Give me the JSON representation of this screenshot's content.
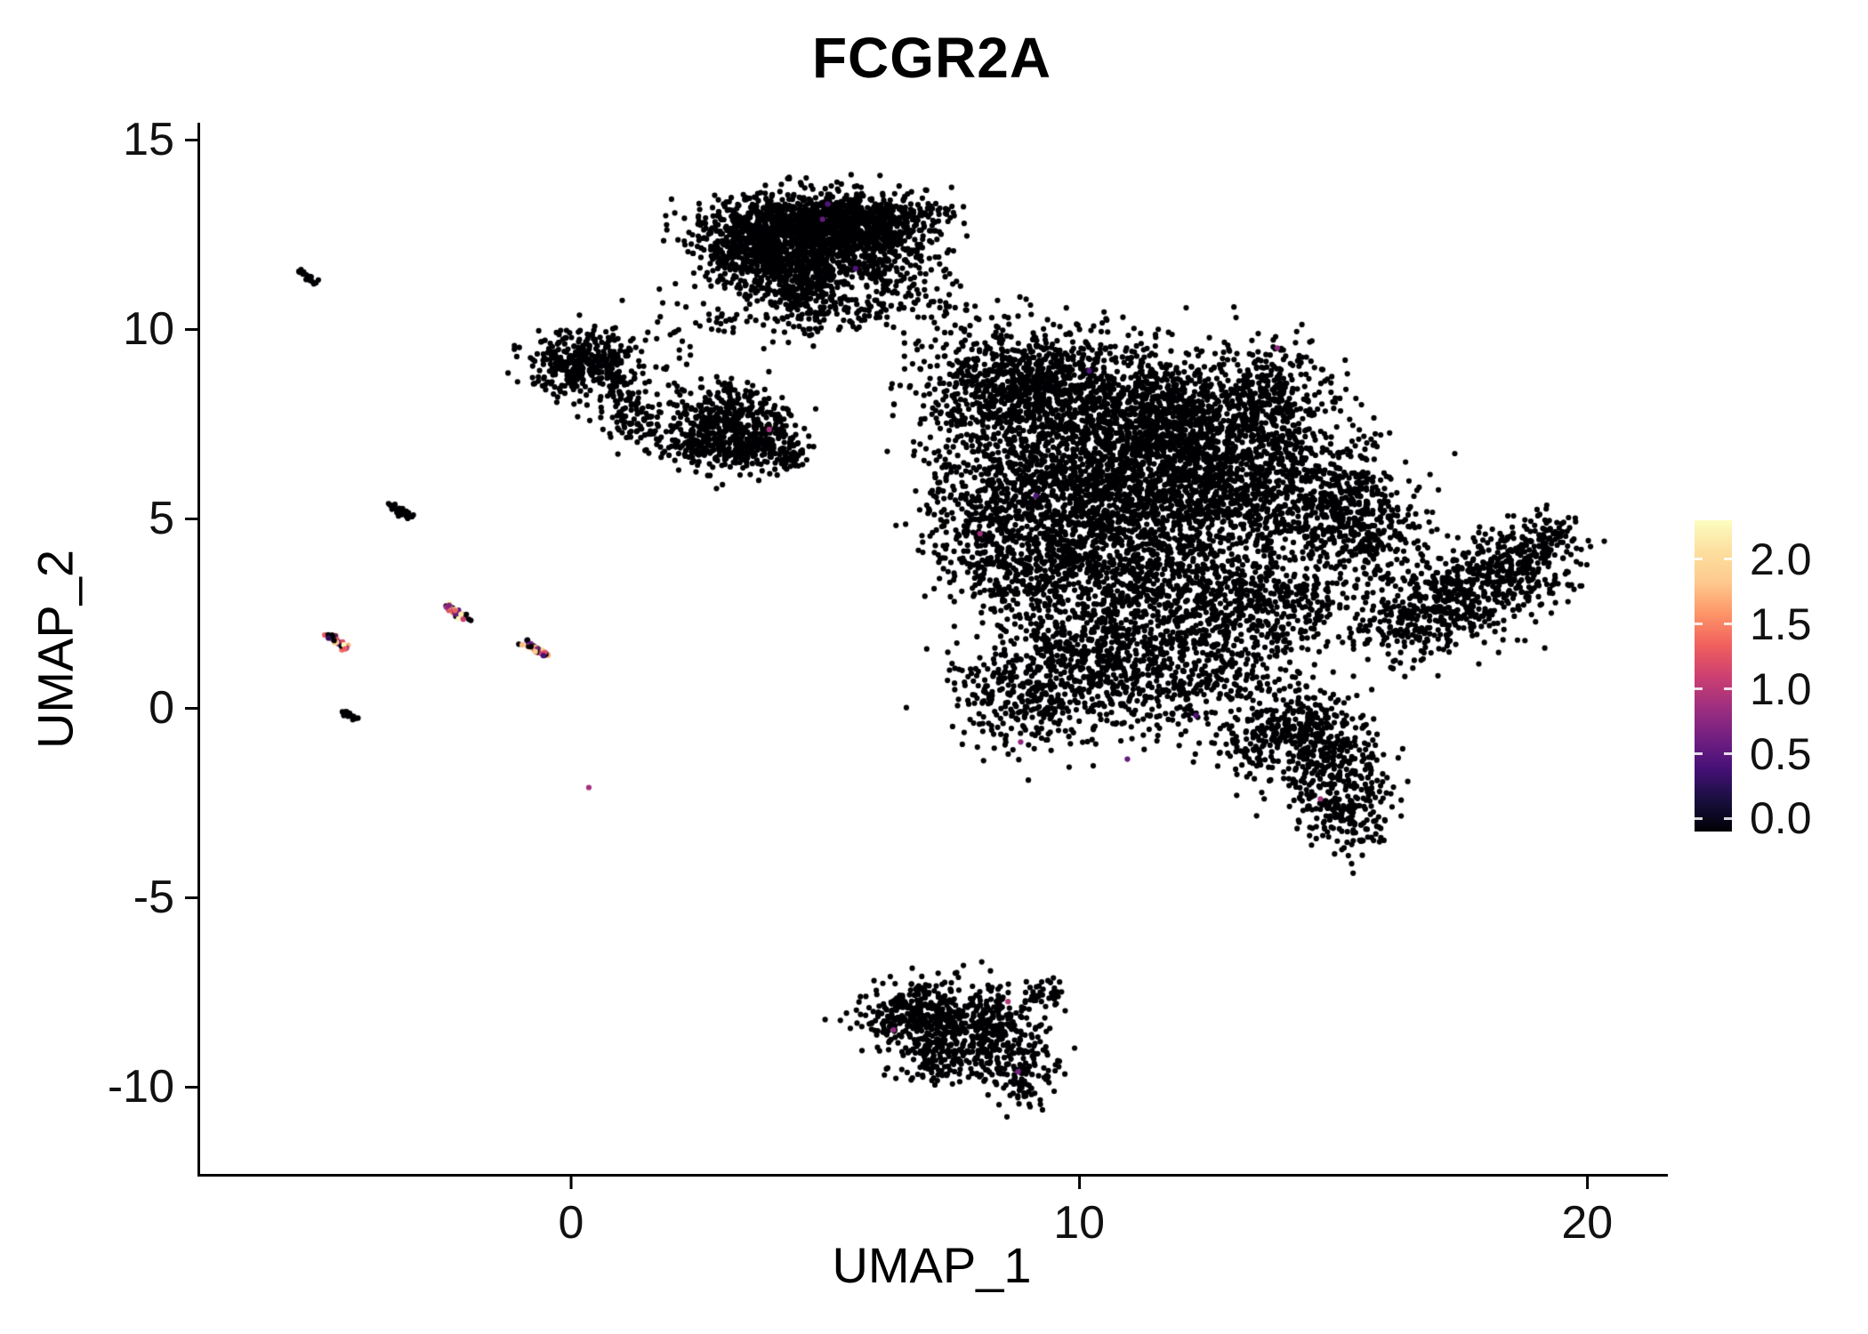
{
  "chart_data": {
    "type": "scatter",
    "title": "FCGR2A",
    "xlabel": "UMAP_1",
    "ylabel": "UMAP_2",
    "xlim": [
      -7.3,
      21.5
    ],
    "ylim": [
      -12.3,
      15.4
    ],
    "xticks": [
      0,
      10,
      20
    ],
    "yticks": [
      -10,
      -5,
      0,
      5,
      10,
      15
    ],
    "grid": false,
    "legend_position": "right",
    "legend_ticks": [
      2.0,
      1.5,
      1.0,
      0.5,
      0.0
    ],
    "vmax": 2.2,
    "point_color_zero": "#000004",
    "colormap": [
      [
        0.0,
        "#000004"
      ],
      [
        0.1,
        "#180f3e"
      ],
      [
        0.2,
        "#451077"
      ],
      [
        0.3,
        "#721f81"
      ],
      [
        0.4,
        "#9f2f7f"
      ],
      [
        0.5,
        "#cd4071"
      ],
      [
        0.6,
        "#f1605d"
      ],
      [
        0.7,
        "#fd9567"
      ],
      [
        0.8,
        "#fec98d"
      ],
      [
        0.9,
        "#fcdf9f"
      ],
      [
        1.0,
        "#fcfdbf"
      ]
    ],
    "clusters": [
      [
        4.3,
        12.7,
        0.85,
        0.45,
        800
      ],
      [
        5.4,
        12.9,
        0.7,
        0.35,
        450
      ],
      [
        3.5,
        12.0,
        0.5,
        0.5,
        350
      ],
      [
        4.4,
        11.4,
        0.5,
        0.5,
        300
      ],
      [
        5.2,
        11.9,
        0.6,
        0.5,
        300
      ],
      [
        6.1,
        12.5,
        0.5,
        0.4,
        200
      ],
      [
        4.7,
        10.6,
        0.35,
        0.45,
        120
      ],
      [
        6.6,
        11.6,
        0.5,
        0.6,
        90
      ],
      [
        6.9,
        13.0,
        0.4,
        0.3,
        60
      ],
      [
        5.9,
        10.7,
        0.5,
        0.4,
        60
      ],
      [
        7.3,
        10.2,
        0.5,
        0.5,
        40
      ],
      [
        2.6,
        10.3,
        0.6,
        0.5,
        40
      ],
      [
        0.4,
        9.2,
        0.55,
        0.4,
        260
      ],
      [
        -0.1,
        8.9,
        0.3,
        0.35,
        100
      ],
      [
        1.0,
        8.2,
        0.3,
        0.45,
        90
      ],
      [
        1.3,
        7.5,
        0.25,
        0.3,
        50
      ],
      [
        3.0,
        7.5,
        0.6,
        0.55,
        450
      ],
      [
        3.8,
        7.0,
        0.4,
        0.35,
        150
      ],
      [
        2.5,
        6.8,
        0.3,
        0.3,
        80
      ],
      [
        4.3,
        6.6,
        0.25,
        0.25,
        40
      ],
      [
        7.6,
        7.8,
        0.35,
        0.5,
        50
      ],
      [
        8.9,
        8.6,
        1.0,
        0.8,
        700
      ],
      [
        10.8,
        7.8,
        1.2,
        0.9,
        900
      ],
      [
        12.6,
        7.3,
        1.0,
        0.8,
        700
      ],
      [
        13.9,
        8.3,
        0.6,
        0.7,
        250
      ],
      [
        9.8,
        6.0,
        1.2,
        0.9,
        800
      ],
      [
        11.8,
        5.4,
        1.2,
        0.9,
        800
      ],
      [
        13.8,
        5.7,
        0.8,
        0.8,
        400
      ],
      [
        15.2,
        5.2,
        0.6,
        0.9,
        300
      ],
      [
        8.1,
        5.3,
        0.5,
        1.1,
        250
      ],
      [
        9.2,
        4.0,
        0.9,
        0.8,
        500
      ],
      [
        11.0,
        3.3,
        1.0,
        0.9,
        500
      ],
      [
        12.8,
        3.0,
        0.8,
        0.8,
        350
      ],
      [
        14.2,
        2.6,
        0.6,
        0.7,
        200
      ],
      [
        10.3,
        1.5,
        1.0,
        0.7,
        400
      ],
      [
        9.0,
        0.3,
        0.7,
        0.8,
        300
      ],
      [
        11.3,
        0.5,
        0.8,
        0.6,
        250
      ],
      [
        12.9,
        1.2,
        0.7,
        0.7,
        200
      ],
      [
        15.9,
        4.6,
        0.5,
        0.8,
        180
      ],
      [
        14.9,
        -1.6,
        0.55,
        0.8,
        320
      ],
      [
        14.3,
        -0.4,
        0.5,
        0.5,
        180
      ],
      [
        15.4,
        -2.8,
        0.4,
        0.5,
        120
      ],
      [
        13.4,
        -0.9,
        0.5,
        0.4,
        100
      ],
      [
        16.6,
        2.3,
        0.6,
        0.5,
        220
      ],
      [
        17.6,
        3.1,
        0.7,
        0.55,
        320
      ],
      [
        18.7,
        3.9,
        0.55,
        0.5,
        220
      ],
      [
        19.2,
        4.6,
        0.3,
        0.3,
        60
      ],
      [
        6.7,
        -8.1,
        0.55,
        0.45,
        220
      ],
      [
        7.7,
        -8.2,
        0.7,
        0.5,
        300
      ],
      [
        8.5,
        -9.0,
        0.5,
        0.5,
        200
      ],
      [
        7.2,
        -9.2,
        0.45,
        0.4,
        120
      ],
      [
        8.9,
        -9.9,
        0.3,
        0.35,
        60
      ],
      [
        9.3,
        -7.6,
        0.25,
        0.25,
        40
      ]
    ],
    "streaks": [
      [
        -5.35,
        11.55,
        -5.05,
        11.25,
        20,
        0
      ],
      [
        -3.55,
        5.35,
        -3.1,
        5.0,
        40,
        0
      ],
      [
        -4.75,
        1.95,
        -4.45,
        1.6,
        32,
        1
      ],
      [
        -2.45,
        2.7,
        -2.05,
        2.35,
        38,
        1
      ],
      [
        -0.95,
        1.75,
        -0.5,
        1.4,
        38,
        1
      ],
      [
        -4.5,
        -0.05,
        -4.25,
        -0.3,
        18,
        0
      ]
    ],
    "expressing_points": [
      [
        0.35,
        -2.1,
        0.9
      ],
      [
        13.9,
        9.5,
        0.8
      ],
      [
        3.9,
        7.35,
        0.9
      ],
      [
        4.95,
        12.9,
        0.6
      ],
      [
        5.6,
        11.6,
        0.5
      ],
      [
        8.05,
        4.6,
        0.9
      ],
      [
        8.85,
        -0.9,
        0.8
      ],
      [
        10.95,
        -1.35,
        0.6
      ],
      [
        14.75,
        -2.4,
        0.9
      ],
      [
        8.6,
        -7.75,
        1.0
      ],
      [
        6.35,
        -8.5,
        0.8
      ],
      [
        8.8,
        -9.6,
        0.7
      ],
      [
        12.3,
        -0.2,
        0.5
      ],
      [
        5.05,
        13.3,
        0.5
      ],
      [
        9.15,
        5.6,
        0.5
      ],
      [
        10.2,
        8.9,
        0.5
      ]
    ]
  }
}
